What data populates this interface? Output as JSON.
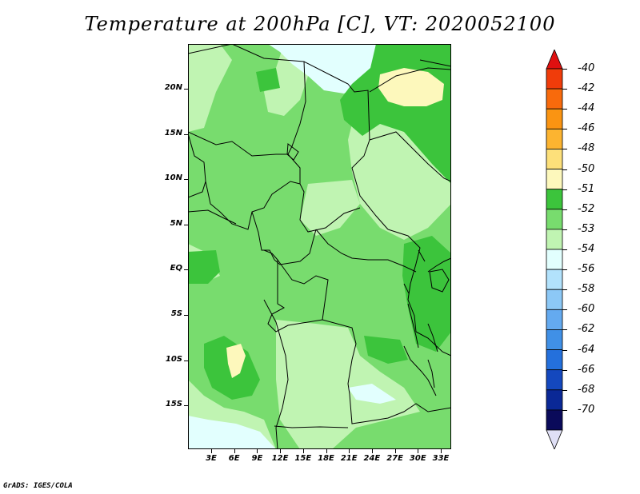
{
  "title": "Temperature at 200hPa [C], VT: 2020052100",
  "footer": "GrADS: IGES/COLA",
  "map": {
    "lat_labels": [
      "20N",
      "15N",
      "10N",
      "5N",
      "EQ",
      "5S",
      "10S",
      "15S"
    ],
    "lon_labels": [
      "3E",
      "6E",
      "9E",
      "12E",
      "15E",
      "18E",
      "21E",
      "24E",
      "27E",
      "30E",
      "33E"
    ]
  },
  "colorbar": {
    "labels": [
      "-40",
      "-42",
      "-44",
      "-46",
      "-48",
      "-50",
      "-51",
      "-52",
      "-53",
      "-54",
      "-56",
      "-58",
      "-60",
      "-62",
      "-64",
      "-66",
      "-68",
      "-70"
    ],
    "colors": [
      "#e01010",
      "#f03c0a",
      "#f86a0c",
      "#fa9412",
      "#fcb430",
      "#fde07a",
      "#fdf8bc",
      "#3cc43c",
      "#78dc6e",
      "#c0f4b2",
      "#e2fffe",
      "#b2e2fc",
      "#8cc8f6",
      "#64aaf0",
      "#4090e6",
      "#2470dc",
      "#1448be",
      "#0a2896",
      "#0a0a5a",
      "#e0e0f6"
    ]
  },
  "colors": {
    "c51": "#fdf8bc",
    "c52": "#3cc43c",
    "c53": "#78dc6e",
    "c54": "#c0f4b2",
    "c56": "#e2fffe",
    "border": "#000000"
  }
}
